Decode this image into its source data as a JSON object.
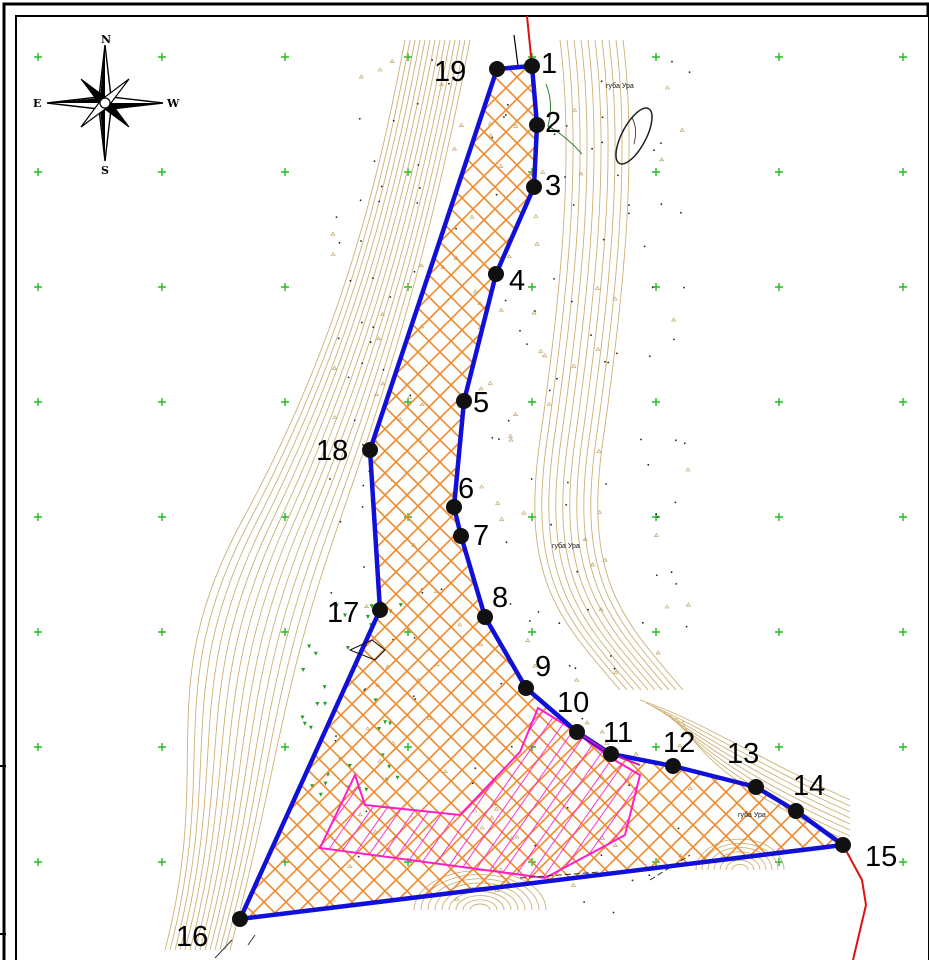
{
  "compass": {
    "north": "N",
    "south": "S",
    "east": "E",
    "west": "W"
  },
  "place_names": [
    "губа Ура",
    "губа Ура",
    "губа Ура"
  ],
  "colors": {
    "boundary": "#1010d8",
    "hatch_main": "#ee8a2c",
    "hatch_zone": "#ff1fc8",
    "contour": "#c8a868",
    "grid_cross": "#22bb22",
    "marker": "#111111",
    "red_line": "#dd1111"
  },
  "boundary_points": [
    {
      "label": "1"
    },
    {
      "label": "2"
    },
    {
      "label": "3"
    },
    {
      "label": "4"
    },
    {
      "label": "5"
    },
    {
      "label": "6"
    },
    {
      "label": "7"
    },
    {
      "label": "8"
    },
    {
      "label": "9"
    },
    {
      "label": "10"
    },
    {
      "label": "11"
    },
    {
      "label": "12"
    },
    {
      "label": "13"
    },
    {
      "label": "14"
    },
    {
      "label": "15"
    },
    {
      "label": "16"
    },
    {
      "label": "17"
    },
    {
      "label": "18"
    },
    {
      "label": "19"
    }
  ]
}
